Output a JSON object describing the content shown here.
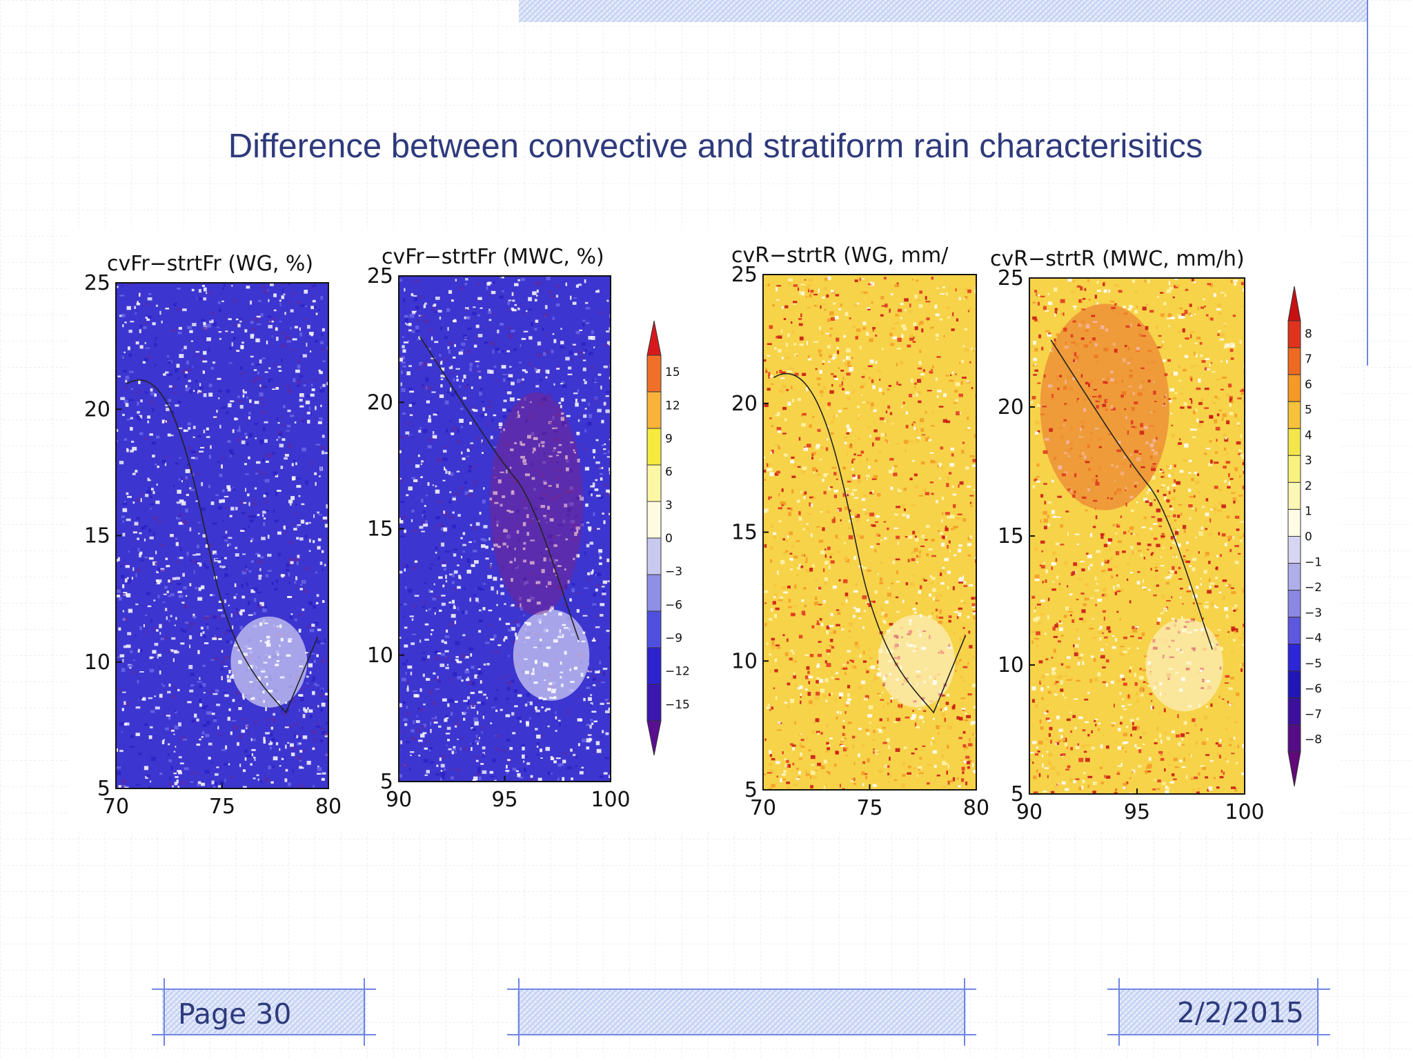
{
  "slide": {
    "title": "Difference between convective and stratiform rain characterisitics",
    "footer": {
      "page": "Page 30",
      "date": "2/2/2015"
    }
  },
  "colors": {
    "slide_text": "#2e3a7c",
    "grid_line": "#d6e0f2",
    "accent": "#5d78e0",
    "hatch_fill": "#c8d4f4"
  },
  "chart_data": [
    {
      "type": "heatmap",
      "title": "cvFr−strtFr (WG, %)",
      "x_ticks": [
        "70",
        "75",
        "80"
      ],
      "y_ticks": [
        "25",
        "20",
        "15",
        "10",
        "5"
      ],
      "xlim": [
        70,
        80
      ],
      "ylim": [
        5,
        25
      ],
      "palette": "blue"
    },
    {
      "type": "heatmap",
      "title": "cvFr−strtFr (MWC, %)",
      "x_ticks": [
        "90",
        "95",
        "100"
      ],
      "y_ticks": [
        "25",
        "20",
        "15",
        "10",
        "5"
      ],
      "xlim": [
        90,
        100
      ],
      "ylim": [
        5,
        25
      ],
      "palette": "blue",
      "colorbar": {
        "labels": [
          "15",
          "12",
          "9",
          "6",
          "3",
          "0",
          "−3",
          "−6",
          "−9",
          "−12",
          "−15"
        ],
        "colors": [
          "#d7191c",
          "#f0702a",
          "#f9b33b",
          "#f7ea3e",
          "#fbf7a4",
          "#fffbe0",
          "#c9c9f0",
          "#8f8fe6",
          "#5050e0",
          "#2c23cf",
          "#3b17b0",
          "#5a0f92"
        ]
      }
    },
    {
      "type": "heatmap",
      "title": "cvR−strtR (WG, mm/",
      "x_ticks": [
        "70",
        "75",
        "80"
      ],
      "y_ticks": [
        "25",
        "20",
        "15",
        "10",
        "5"
      ],
      "xlim": [
        70,
        80
      ],
      "ylim": [
        5,
        25
      ],
      "palette": "warm"
    },
    {
      "type": "heatmap",
      "title": "cvR−strtR (MWC, mm/h)",
      "x_ticks": [
        "90",
        "95",
        "100"
      ],
      "y_ticks": [
        "25",
        "20",
        "15",
        "10",
        "5"
      ],
      "xlim": [
        90,
        100
      ],
      "ylim": [
        5,
        25
      ],
      "palette": "warm",
      "colorbar": {
        "labels": [
          "8",
          "7",
          "6",
          "5",
          "4",
          "3",
          "2",
          "1",
          "0",
          "−1",
          "−2",
          "−3",
          "−4",
          "−5",
          "−6",
          "−7",
          "−8"
        ],
        "colors": [
          "#c80f12",
          "#e0331d",
          "#ee6a22",
          "#f59a27",
          "#f6c23b",
          "#f4e54b",
          "#f8f27e",
          "#fbf7b4",
          "#fffbe5",
          "#d7d5f2",
          "#b0aee9",
          "#8b88e3",
          "#5e58df",
          "#2d25d8",
          "#2216b8",
          "#3d109c",
          "#540d86",
          "#62087a"
        ]
      }
    }
  ]
}
